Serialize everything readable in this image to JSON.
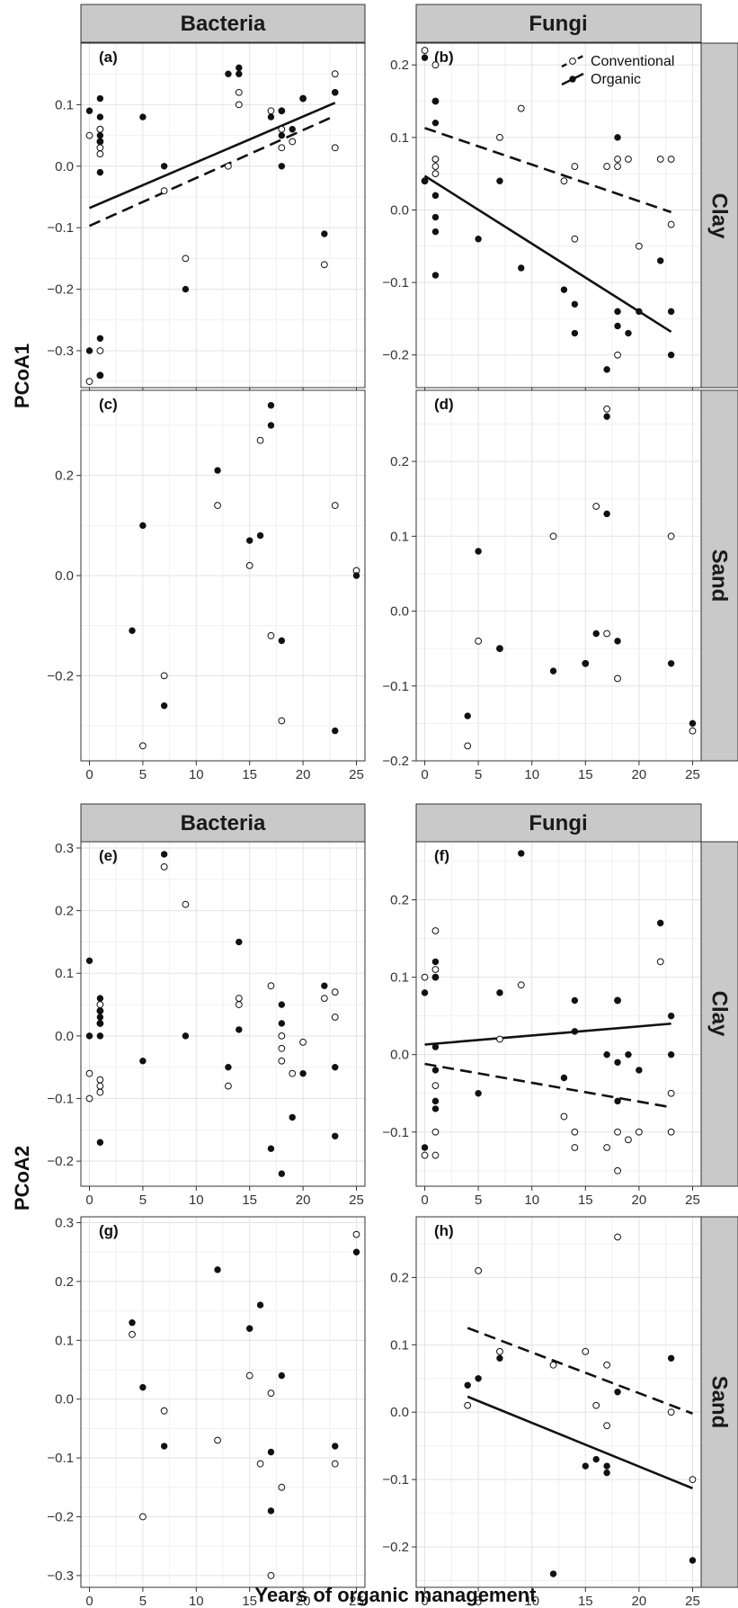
{
  "figure": {
    "xlabel": "Years of organic management",
    "ylabel_top": "PCoA1",
    "ylabel_bottom": "PCoA2",
    "col_labels": [
      "Bacteria",
      "Fungi"
    ],
    "row_labels": [
      "Clay",
      "Sand"
    ],
    "legend": {
      "conventional": "Conventional",
      "organic": "Organic"
    },
    "x_ticks": [
      "0",
      "5",
      "10",
      "15",
      "20",
      "25"
    ]
  },
  "chart_data": [
    {
      "id": "a",
      "label": "(a)",
      "type": "scatter",
      "community": "Bacteria",
      "soil": "Clay",
      "axis": "PCoA1",
      "xlim": [
        -0.8,
        25.8
      ],
      "ylim": [
        -0.36,
        0.2
      ],
      "yticks": [
        -0.3,
        -0.2,
        -0.1,
        0.0,
        0.1
      ],
      "ytick_labels": [
        "−0.3",
        "−0.2",
        "−0.1",
        "0.0",
        "0.1"
      ],
      "conventional": [
        [
          0,
          0.05
        ],
        [
          0,
          -0.35
        ],
        [
          1,
          0.06
        ],
        [
          1,
          0.06
        ],
        [
          1,
          0.04
        ],
        [
          1,
          0.03
        ],
        [
          1,
          0.02
        ],
        [
          1,
          -0.3
        ],
        [
          1,
          -0.34
        ],
        [
          7,
          -0.04
        ],
        [
          9,
          -0.15
        ],
        [
          13,
          0.0
        ],
        [
          14,
          0.12
        ],
        [
          14,
          0.1
        ],
        [
          17,
          0.09
        ],
        [
          18,
          0.09
        ],
        [
          18,
          0.06
        ],
        [
          18,
          0.03
        ],
        [
          19,
          0.04
        ],
        [
          20,
          0.11
        ],
        [
          22,
          -0.16
        ],
        [
          23,
          0.15
        ],
        [
          23,
          0.03
        ]
      ],
      "organic": [
        [
          0,
          0.09
        ],
        [
          0,
          -0.3
        ],
        [
          1,
          0.11
        ],
        [
          1,
          0.08
        ],
        [
          1,
          0.05
        ],
        [
          1,
          0.04
        ],
        [
          1,
          -0.01
        ],
        [
          1,
          -0.28
        ],
        [
          1,
          -0.34
        ],
        [
          5,
          0.08
        ],
        [
          7,
          0.0
        ],
        [
          9,
          -0.2
        ],
        [
          13,
          0.15
        ],
        [
          14,
          0.16
        ],
        [
          14,
          0.15
        ],
        [
          17,
          0.08
        ],
        [
          18,
          0.09
        ],
        [
          18,
          0.05
        ],
        [
          18,
          0.0
        ],
        [
          19,
          0.06
        ],
        [
          20,
          0.11
        ],
        [
          22,
          -0.11
        ],
        [
          23,
          0.12
        ],
        [
          23,
          0.12
        ]
      ],
      "fits": [
        {
          "group": "organic",
          "x": [
            0,
            23
          ],
          "y": [
            -0.068,
            0.103
          ]
        },
        {
          "group": "conventional",
          "x": [
            0,
            23
          ],
          "y": [
            -0.097,
            0.082
          ]
        }
      ]
    },
    {
      "id": "b",
      "label": "(b)",
      "type": "scatter",
      "community": "Fungi",
      "soil": "Clay",
      "axis": "PCoA1",
      "xlim": [
        -0.8,
        25.8
      ],
      "ylim": [
        -0.245,
        0.23
      ],
      "yticks": [
        -0.2,
        -0.1,
        0.0,
        0.1,
        0.2
      ],
      "ytick_labels": [
        "−0.2",
        "−0.1",
        "0.0",
        "0.1",
        "0.2"
      ],
      "conventional": [
        [
          0,
          0.22
        ],
        [
          0,
          0.04
        ],
        [
          1,
          0.2
        ],
        [
          1,
          0.15
        ],
        [
          1,
          0.07
        ],
        [
          1,
          0.07
        ],
        [
          1,
          0.06
        ],
        [
          1,
          0.05
        ],
        [
          7,
          0.1
        ],
        [
          9,
          0.14
        ],
        [
          13,
          0.04
        ],
        [
          14,
          0.06
        ],
        [
          14,
          -0.04
        ],
        [
          17,
          0.06
        ],
        [
          18,
          0.07
        ],
        [
          18,
          0.06
        ],
        [
          18,
          -0.2
        ],
        [
          19,
          0.07
        ],
        [
          20,
          -0.05
        ],
        [
          22,
          0.07
        ],
        [
          23,
          0.07
        ],
        [
          23,
          -0.02
        ]
      ],
      "organic": [
        [
          0,
          0.21
        ],
        [
          0,
          0.04
        ],
        [
          1,
          0.15
        ],
        [
          1,
          0.12
        ],
        [
          1,
          0.02
        ],
        [
          1,
          -0.01
        ],
        [
          1,
          -0.03
        ],
        [
          1,
          -0.09
        ],
        [
          5,
          -0.04
        ],
        [
          7,
          0.04
        ],
        [
          9,
          -0.08
        ],
        [
          13,
          -0.11
        ],
        [
          14,
          -0.13
        ],
        [
          14,
          -0.17
        ],
        [
          17,
          -0.22
        ],
        [
          18,
          0.1
        ],
        [
          18,
          -0.14
        ],
        [
          18,
          -0.16
        ],
        [
          19,
          -0.17
        ],
        [
          20,
          -0.14
        ],
        [
          22,
          -0.07
        ],
        [
          23,
          -0.14
        ],
        [
          23,
          -0.2
        ]
      ],
      "fits": [
        {
          "group": "conventional",
          "x": [
            0,
            23
          ],
          "y": [
            0.113,
            -0.003
          ]
        },
        {
          "group": "organic",
          "x": [
            0,
            23
          ],
          "y": [
            0.047,
            -0.168
          ]
        }
      ],
      "legend": true
    },
    {
      "id": "c",
      "label": "(c)",
      "type": "scatter",
      "community": "Bacteria",
      "soil": "Sand",
      "axis": "PCoA1",
      "xlim": [
        -0.8,
        25.8
      ],
      "ylim": [
        -0.37,
        0.37
      ],
      "yticks": [
        -0.2,
        0.0,
        0.2
      ],
      "ytick_labels": [
        "−0.2",
        "0.0",
        "0.2"
      ],
      "conventional": [
        [
          5,
          -0.34
        ],
        [
          7,
          -0.2
        ],
        [
          12,
          0.14
        ],
        [
          15,
          0.02
        ],
        [
          16,
          0.27
        ],
        [
          17,
          -0.12
        ],
        [
          18,
          -0.29
        ],
        [
          23,
          0.14
        ],
        [
          25,
          0.01
        ]
      ],
      "organic": [
        [
          4,
          -0.11
        ],
        [
          5,
          0.1
        ],
        [
          7,
          -0.26
        ],
        [
          12,
          0.21
        ],
        [
          15,
          0.07
        ],
        [
          16,
          0.08
        ],
        [
          17,
          0.34
        ],
        [
          17,
          0.3
        ],
        [
          18,
          -0.13
        ],
        [
          23,
          -0.31
        ],
        [
          25,
          0.0
        ]
      ],
      "fits": []
    },
    {
      "id": "d",
      "label": "(d)",
      "type": "scatter",
      "community": "Fungi",
      "soil": "Sand",
      "axis": "PCoA1",
      "xlim": [
        -0.8,
        25.8
      ],
      "ylim": [
        -0.2,
        0.295
      ],
      "yticks": [
        -0.2,
        -0.1,
        0.0,
        0.1,
        0.2
      ],
      "ytick_labels": [
        "−0.2",
        "−0.1",
        "0.0",
        "0.1",
        "0.2"
      ],
      "conventional": [
        [
          4,
          -0.18
        ],
        [
          5,
          -0.04
        ],
        [
          7,
          -0.05
        ],
        [
          12,
          0.1
        ],
        [
          15,
          -0.07
        ],
        [
          16,
          0.14
        ],
        [
          17,
          0.27
        ],
        [
          17,
          -0.03
        ],
        [
          18,
          -0.09
        ],
        [
          23,
          0.1
        ],
        [
          25,
          -0.16
        ]
      ],
      "organic": [
        [
          4,
          -0.14
        ],
        [
          5,
          0.08
        ],
        [
          7,
          -0.05
        ],
        [
          12,
          -0.08
        ],
        [
          15,
          -0.07
        ],
        [
          16,
          -0.03
        ],
        [
          17,
          0.26
        ],
        [
          17,
          0.13
        ],
        [
          18,
          -0.04
        ],
        [
          23,
          -0.07
        ],
        [
          25,
          -0.15
        ]
      ],
      "fits": []
    },
    {
      "id": "e",
      "label": "(e)",
      "type": "scatter",
      "community": "Bacteria",
      "soil": "Clay",
      "axis": "PCoA2",
      "xlim": [
        -0.8,
        25.8
      ],
      "ylim": [
        -0.24,
        0.31
      ],
      "yticks": [
        -0.2,
        -0.1,
        0.0,
        0.1,
        0.2,
        0.3
      ],
      "ytick_labels": [
        "−0.2",
        "−0.1",
        "0.0",
        "0.1",
        "0.2",
        "0.3"
      ],
      "conventional": [
        [
          0,
          -0.06
        ],
        [
          0,
          -0.1
        ],
        [
          1,
          0.05
        ],
        [
          1,
          0.04
        ],
        [
          1,
          0.02
        ],
        [
          1,
          -0.07
        ],
        [
          1,
          -0.08
        ],
        [
          1,
          -0.09
        ],
        [
          7,
          0.27
        ],
        [
          9,
          0.21
        ],
        [
          13,
          -0.08
        ],
        [
          14,
          0.06
        ],
        [
          14,
          0.05
        ],
        [
          17,
          0.08
        ],
        [
          18,
          0.0
        ],
        [
          18,
          -0.02
        ],
        [
          18,
          -0.04
        ],
        [
          19,
          -0.06
        ],
        [
          20,
          -0.01
        ],
        [
          22,
          0.06
        ],
        [
          23,
          0.07
        ],
        [
          23,
          0.03
        ]
      ],
      "organic": [
        [
          0,
          0.12
        ],
        [
          0,
          0.0
        ],
        [
          1,
          0.06
        ],
        [
          1,
          0.04
        ],
        [
          1,
          0.03
        ],
        [
          1,
          0.02
        ],
        [
          1,
          0.0
        ],
        [
          1,
          -0.17
        ],
        [
          5,
          -0.04
        ],
        [
          7,
          0.29
        ],
        [
          9,
          0.0
        ],
        [
          13,
          -0.05
        ],
        [
          14,
          0.15
        ],
        [
          14,
          0.01
        ],
        [
          17,
          -0.18
        ],
        [
          18,
          0.05
        ],
        [
          18,
          0.02
        ],
        [
          18,
          -0.22
        ],
        [
          19,
          -0.13
        ],
        [
          20,
          -0.06
        ],
        [
          22,
          0.08
        ],
        [
          23,
          -0.05
        ],
        [
          23,
          -0.16
        ]
      ],
      "fits": []
    },
    {
      "id": "f",
      "label": "(f)",
      "type": "scatter",
      "community": "Fungi",
      "soil": "Clay",
      "axis": "PCoA2",
      "xlim": [
        -0.8,
        25.8
      ],
      "ylim": [
        -0.17,
        0.275
      ],
      "yticks": [
        -0.1,
        0.0,
        0.1,
        0.2
      ],
      "ytick_labels": [
        "−0.1",
        "0.0",
        "0.1",
        "0.2"
      ],
      "conventional": [
        [
          0,
          0.1
        ],
        [
          0,
          -0.13
        ],
        [
          1,
          0.16
        ],
        [
          1,
          0.11
        ],
        [
          1,
          0.1
        ],
        [
          1,
          -0.04
        ],
        [
          1,
          -0.1
        ],
        [
          1,
          -0.13
        ],
        [
          7,
          0.02
        ],
        [
          9,
          0.09
        ],
        [
          13,
          -0.08
        ],
        [
          14,
          -0.1
        ],
        [
          14,
          -0.12
        ],
        [
          17,
          -0.12
        ],
        [
          18,
          0.07
        ],
        [
          18,
          -0.1
        ],
        [
          18,
          -0.15
        ],
        [
          19,
          -0.11
        ],
        [
          20,
          -0.1
        ],
        [
          22,
          0.12
        ],
        [
          23,
          -0.05
        ],
        [
          23,
          -0.1
        ]
      ],
      "organic": [
        [
          0,
          0.08
        ],
        [
          0,
          -0.12
        ],
        [
          1,
          0.12
        ],
        [
          1,
          0.1
        ],
        [
          1,
          0.01
        ],
        [
          1,
          -0.02
        ],
        [
          1,
          -0.06
        ],
        [
          1,
          -0.07
        ],
        [
          5,
          -0.05
        ],
        [
          7,
          0.08
        ],
        [
          9,
          0.26
        ],
        [
          13,
          -0.03
        ],
        [
          14,
          0.07
        ],
        [
          14,
          0.03
        ],
        [
          17,
          0.0
        ],
        [
          18,
          0.07
        ],
        [
          18,
          -0.01
        ],
        [
          18,
          -0.06
        ],
        [
          19,
          0.0
        ],
        [
          20,
          -0.02
        ],
        [
          22,
          0.17
        ],
        [
          23,
          0.05
        ],
        [
          23,
          0.0
        ]
      ],
      "fits": [
        {
          "group": "organic",
          "x": [
            0,
            23
          ],
          "y": [
            0.013,
            0.04
          ]
        },
        {
          "group": "conventional",
          "x": [
            0,
            23
          ],
          "y": [
            -0.012,
            -0.068
          ]
        }
      ]
    },
    {
      "id": "g",
      "label": "(g)",
      "type": "scatter",
      "community": "Bacteria",
      "soil": "Sand",
      "axis": "PCoA2",
      "xlim": [
        -0.8,
        25.8
      ],
      "ylim": [
        -0.32,
        0.31
      ],
      "yticks": [
        -0.3,
        -0.2,
        -0.1,
        0.0,
        0.1,
        0.2,
        0.3
      ],
      "ytick_labels": [
        "−0.3",
        "−0.2",
        "−0.1",
        "0.0",
        "0.1",
        "0.2",
        "0.3"
      ],
      "conventional": [
        [
          4,
          0.11
        ],
        [
          5,
          -0.2
        ],
        [
          7,
          -0.02
        ],
        [
          12,
          -0.07
        ],
        [
          15,
          0.04
        ],
        [
          16,
          -0.11
        ],
        [
          17,
          0.01
        ],
        [
          17,
          -0.3
        ],
        [
          18,
          -0.15
        ],
        [
          23,
          -0.11
        ],
        [
          25,
          0.28
        ]
      ],
      "organic": [
        [
          4,
          0.13
        ],
        [
          5,
          0.02
        ],
        [
          7,
          -0.08
        ],
        [
          12,
          0.22
        ],
        [
          15,
          0.12
        ],
        [
          16,
          0.16
        ],
        [
          17,
          -0.09
        ],
        [
          17,
          -0.19
        ],
        [
          18,
          0.04
        ],
        [
          23,
          -0.08
        ],
        [
          25,
          0.25
        ]
      ],
      "fits": []
    },
    {
      "id": "h",
      "label": "(h)",
      "type": "scatter",
      "community": "Fungi",
      "soil": "Sand",
      "axis": "PCoA2",
      "xlim": [
        -0.8,
        25.8
      ],
      "ylim": [
        -0.26,
        0.29
      ],
      "yticks": [
        -0.2,
        -0.1,
        0.0,
        0.1,
        0.2
      ],
      "ytick_labels": [
        "−0.2",
        "−0.1",
        "0.0",
        "0.1",
        "0.2"
      ],
      "conventional": [
        [
          4,
          0.01
        ],
        [
          5,
          0.21
        ],
        [
          7,
          0.09
        ],
        [
          12,
          0.07
        ],
        [
          15,
          0.09
        ],
        [
          16,
          0.01
        ],
        [
          17,
          0.07
        ],
        [
          17,
          -0.02
        ],
        [
          18,
          0.26
        ],
        [
          23,
          0.0
        ],
        [
          25,
          -0.1
        ]
      ],
      "organic": [
        [
          4,
          0.04
        ],
        [
          5,
          0.05
        ],
        [
          7,
          0.08
        ],
        [
          12,
          -0.24
        ],
        [
          15,
          -0.08
        ],
        [
          16,
          -0.07
        ],
        [
          17,
          -0.08
        ],
        [
          17,
          -0.09
        ],
        [
          18,
          0.03
        ],
        [
          23,
          0.08
        ],
        [
          25,
          -0.22
        ]
      ],
      "fits": [
        {
          "group": "conventional",
          "x": [
            4,
            25
          ],
          "y": [
            0.125,
            -0.002
          ]
        },
        {
          "group": "organic",
          "x": [
            4,
            25
          ],
          "y": [
            0.023,
            -0.113
          ]
        }
      ]
    }
  ]
}
